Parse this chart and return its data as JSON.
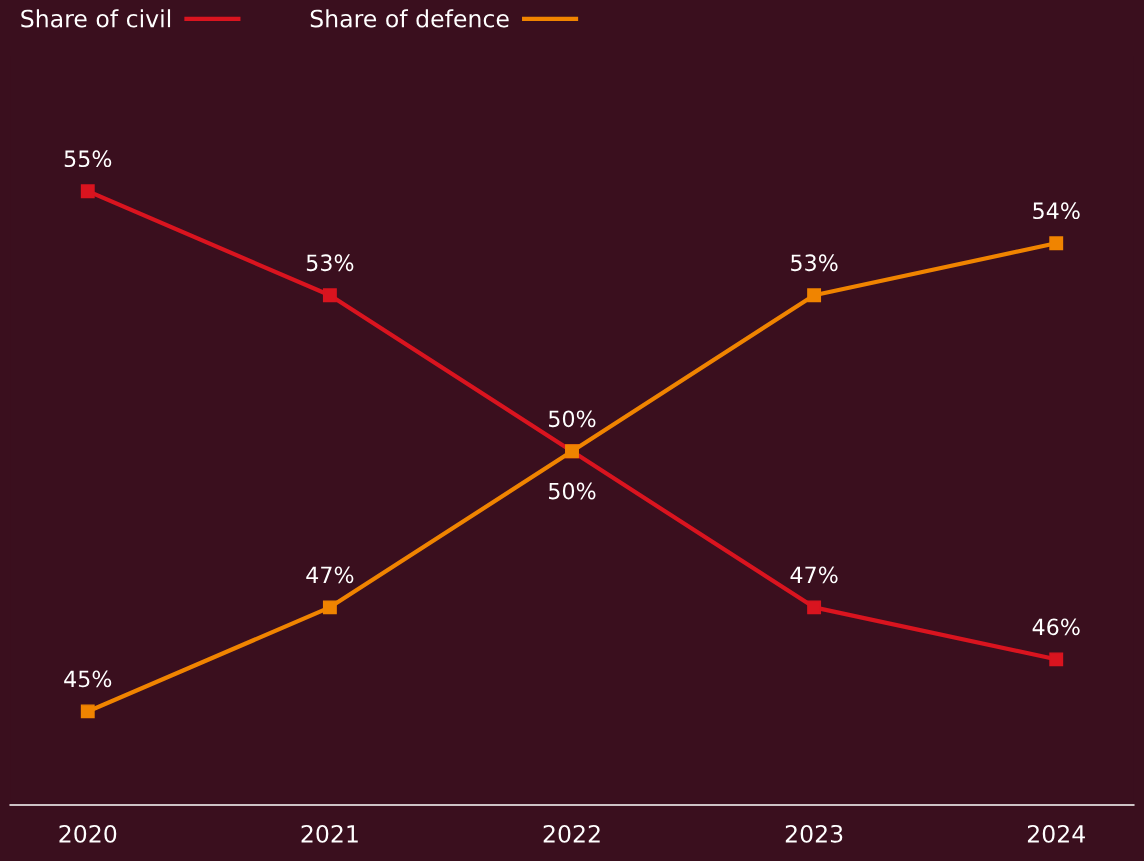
{
  "chart_data": {
    "type": "line",
    "categories": [
      "2020",
      "2021",
      "2022",
      "2023",
      "2024"
    ],
    "series": [
      {
        "name": "Share of civil",
        "color": "#d9141f",
        "values": [
          55,
          53,
          50,
          47,
          46
        ],
        "value_labels": [
          "55%",
          "53%",
          "50%",
          "47%",
          "46%"
        ]
      },
      {
        "name": "Share of defence",
        "color": "#f08400",
        "values": [
          45,
          47,
          50,
          53,
          54
        ],
        "value_labels": [
          "45%",
          "47%",
          "50%",
          "53%",
          "54%"
        ]
      }
    ],
    "relative": false,
    "marker": "square",
    "line_style": "solid",
    "grid": false,
    "legend": "top left",
    "tick_labels": "x"
  }
}
